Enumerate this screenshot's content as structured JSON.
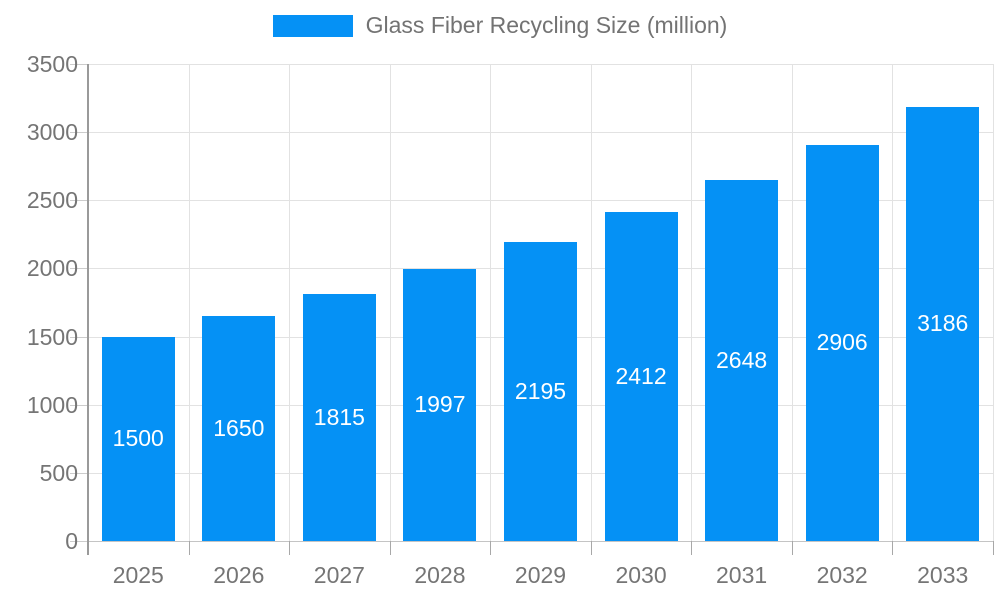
{
  "legend": {
    "label": "Glass Fiber Recycling Size (million)"
  },
  "chart_data": {
    "type": "bar",
    "title": "",
    "xlabel": "",
    "ylabel": "",
    "categories": [
      "2025",
      "2026",
      "2027",
      "2028",
      "2029",
      "2030",
      "2031",
      "2032",
      "2033"
    ],
    "values": [
      1500,
      1650,
      1815,
      1997,
      2195,
      2412,
      2648,
      2906,
      3186
    ],
    "series_name": "Glass Fiber Recycling Size (million)",
    "ylim": [
      0,
      3500
    ],
    "yticks": [
      0,
      500,
      1000,
      1500,
      2000,
      2500,
      3000,
      3500
    ],
    "grid": true,
    "legend_position": "top-center",
    "value_labels": "inside-center",
    "colors": {
      "bar": "#0591f5",
      "value_label": "#ffffff",
      "axis_text": "#757575",
      "gridline": "#e2e2e2",
      "axis_line": "#9a9a9a"
    }
  }
}
